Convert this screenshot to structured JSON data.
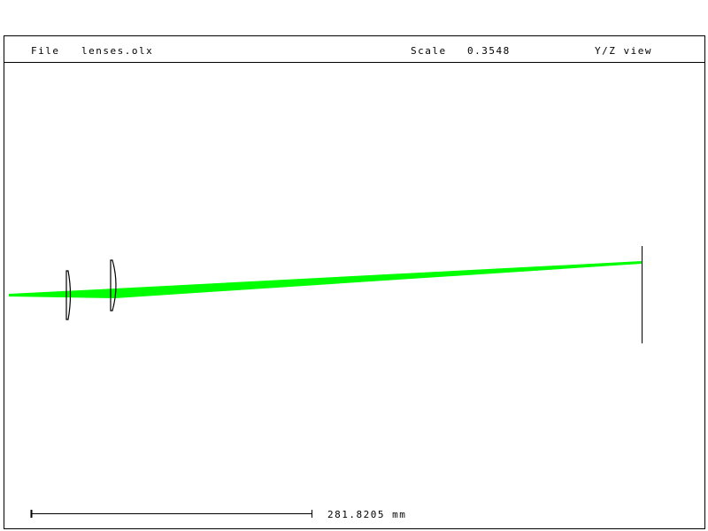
{
  "header": {
    "file_label": "File",
    "file_name": "lenses.olx",
    "scale_label": "Scale",
    "scale_value": "0.3548",
    "view_label": "Y/Z view"
  },
  "scale_bar": {
    "label": "281.8205 mm"
  },
  "colors": {
    "rays": "#00ff00",
    "lines": "#000000",
    "background": "#ffffff"
  }
}
